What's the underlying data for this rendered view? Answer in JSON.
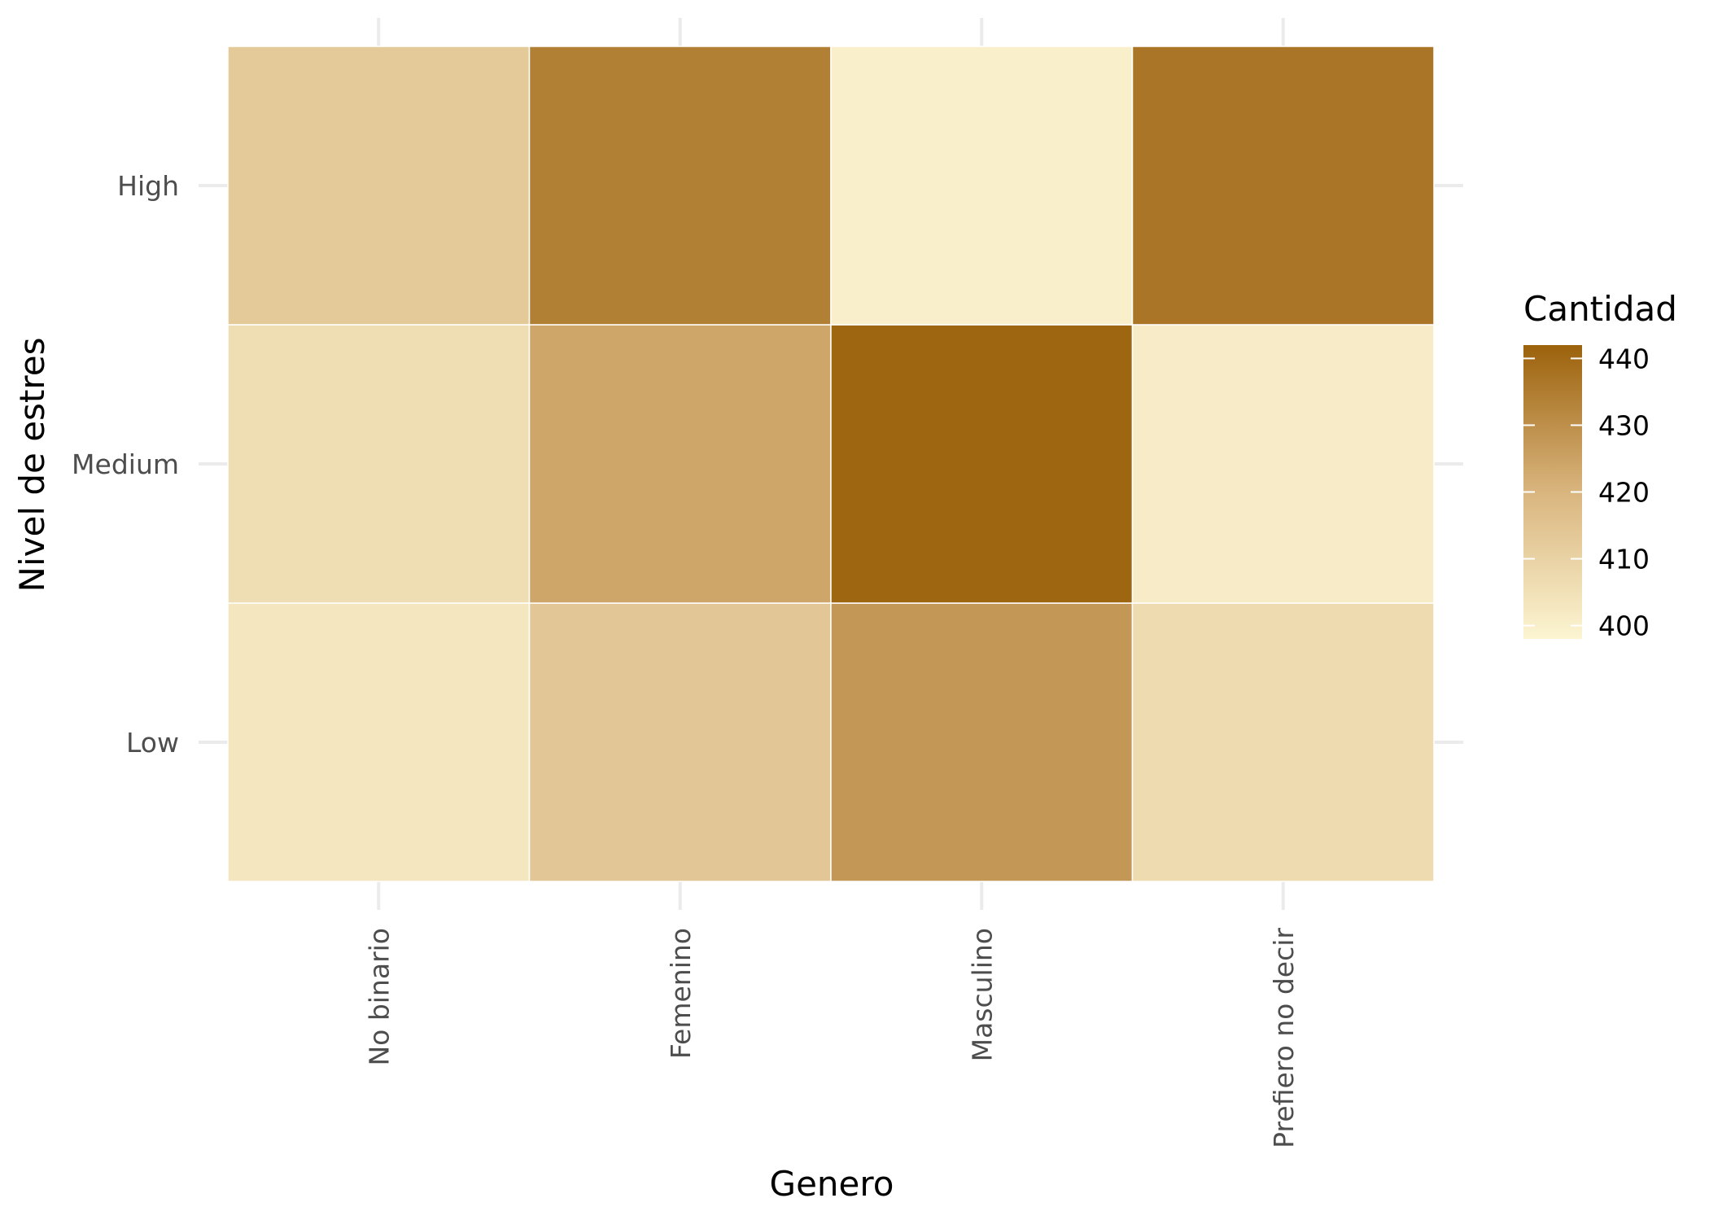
{
  "chart_data": {
    "type": "heatmap",
    "x_categories": [
      "No binario",
      "Femenino",
      "Masculino",
      "Prefiero no decir"
    ],
    "y_categories": [
      "Low",
      "Medium",
      "High"
    ],
    "values": {
      "High": [
        413,
        434,
        400,
        437
      ],
      "Medium": [
        406,
        424,
        441,
        401
      ],
      "Low": [
        403,
        414,
        428,
        407
      ]
    },
    "xlabel": "Genero",
    "ylabel": "Nivel de estres",
    "legend": {
      "title": "Cantidad",
      "ticks": [
        400,
        410,
        420,
        430,
        440
      ],
      "range": [
        398,
        442
      ],
      "placement": "right"
    },
    "color_scale": {
      "low": "#fcf5d2",
      "mid": "#d9b57e",
      "high": "#9c620c"
    },
    "grid": true
  }
}
